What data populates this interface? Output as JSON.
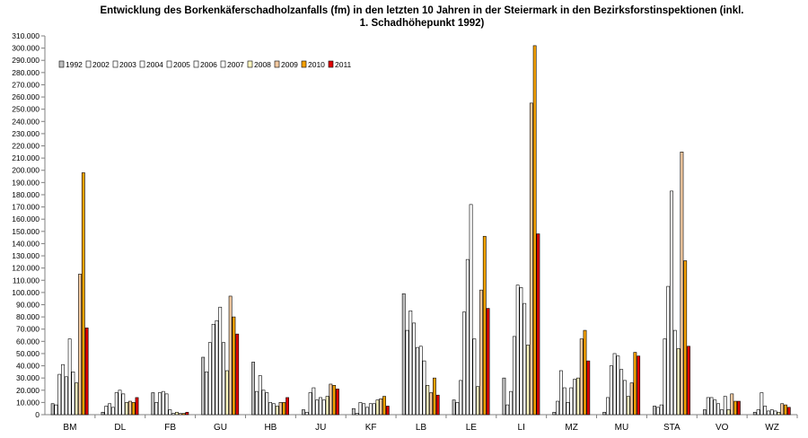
{
  "chart_data": {
    "type": "bar",
    "title_line1": "Entwicklung des Borkenkäferschadholzanfalls  (fm) in den letzten 10 Jahren in der Steiermark in den Bezirksforstinspektionen (inkl.",
    "title_line2": "1. Schadhöhepunkt 1992)",
    "xlabel": "",
    "ylabel": "",
    "ylim": [
      0,
      310000
    ],
    "ytick_step": 10000,
    "ytick_labels": [
      "0",
      "10.000",
      "20.000",
      "30.000",
      "40.000",
      "50.000",
      "60.000",
      "70.000",
      "80.000",
      "90.000",
      "100.000",
      "110.000",
      "120.000",
      "130.000",
      "140.000",
      "150.000",
      "160.000",
      "170.000",
      "180.000",
      "190.000",
      "200.000",
      "210.000",
      "220.000",
      "230.000",
      "240.000",
      "250.000",
      "260.000",
      "270.000",
      "280.000",
      "290.000",
      "300.000",
      "310.000"
    ],
    "grid": false,
    "legend_position": "top-left",
    "categories": [
      "BM",
      "DL",
      "FB",
      "GU",
      "HB",
      "JU",
      "KF",
      "LB",
      "LE",
      "LI",
      "MZ",
      "MU",
      "STA",
      "VO",
      "WZ"
    ],
    "series": [
      {
        "name": "1992",
        "color": "#c0c0c0",
        "values": [
          9000,
          2000,
          18000,
          47000,
          43000,
          4000,
          5000,
          99000,
          12000,
          30000,
          2000,
          2000,
          7000,
          4000,
          2000
        ]
      },
      {
        "name": "2002",
        "color": "#ffffff",
        "values": [
          8000,
          7000,
          10000,
          35000,
          19000,
          2000,
          1000,
          69000,
          10000,
          8000,
          11000,
          14000,
          6000,
          14000,
          4000
        ]
      },
      {
        "name": "2003",
        "color": "#ffffff",
        "values": [
          33000,
          9000,
          18000,
          59000,
          32000,
          18000,
          10000,
          85000,
          28000,
          19000,
          36000,
          40000,
          8000,
          14000,
          18000
        ]
      },
      {
        "name": "2004",
        "color": "#ffffff",
        "values": [
          41000,
          6000,
          19000,
          74000,
          20000,
          22000,
          9000,
          75000,
          84000,
          64000,
          22000,
          50000,
          62000,
          12000,
          7000
        ]
      },
      {
        "name": "2005",
        "color": "#ffffff",
        "values": [
          31000,
          18000,
          17000,
          77000,
          18000,
          12000,
          6000,
          55000,
          127000,
          106000,
          10000,
          48000,
          105000,
          9000,
          3000
        ]
      },
      {
        "name": "2006",
        "color": "#ffffff",
        "values": [
          62000,
          20000,
          4000,
          88000,
          10000,
          14000,
          9000,
          56000,
          172000,
          104000,
          22000,
          37000,
          183000,
          4000,
          4000
        ]
      },
      {
        "name": "2007",
        "color": "#ffffff",
        "values": [
          35000,
          17000,
          1000,
          59000,
          9000,
          12000,
          9000,
          44000,
          62000,
          91000,
          29000,
          28000,
          69000,
          15000,
          3000
        ]
      },
      {
        "name": "2008",
        "color": "#fff7c0",
        "values": [
          26000,
          10000,
          2000,
          36000,
          7000,
          15000,
          12000,
          24000,
          23000,
          57000,
          30000,
          15000,
          54000,
          4000,
          2000
        ]
      },
      {
        "name": "2009",
        "color": "#f2c9a0",
        "values": [
          115000,
          11000,
          1000,
          97000,
          10000,
          25000,
          13000,
          18000,
          102000,
          255000,
          62000,
          26000,
          215000,
          17000,
          9000
        ]
      },
      {
        "name": "2010",
        "color": "#f5a100",
        "values": [
          198000,
          10000,
          1000,
          80000,
          10000,
          24000,
          15000,
          30000,
          146000,
          302000,
          69000,
          51000,
          126000,
          11000,
          8000
        ]
      },
      {
        "name": "2011",
        "color": "#e00000",
        "values": [
          71000,
          14000,
          2000,
          66000,
          14000,
          21000,
          7000,
          16000,
          87000,
          148000,
          44000,
          48000,
          56000,
          11000,
          6000
        ]
      }
    ]
  }
}
